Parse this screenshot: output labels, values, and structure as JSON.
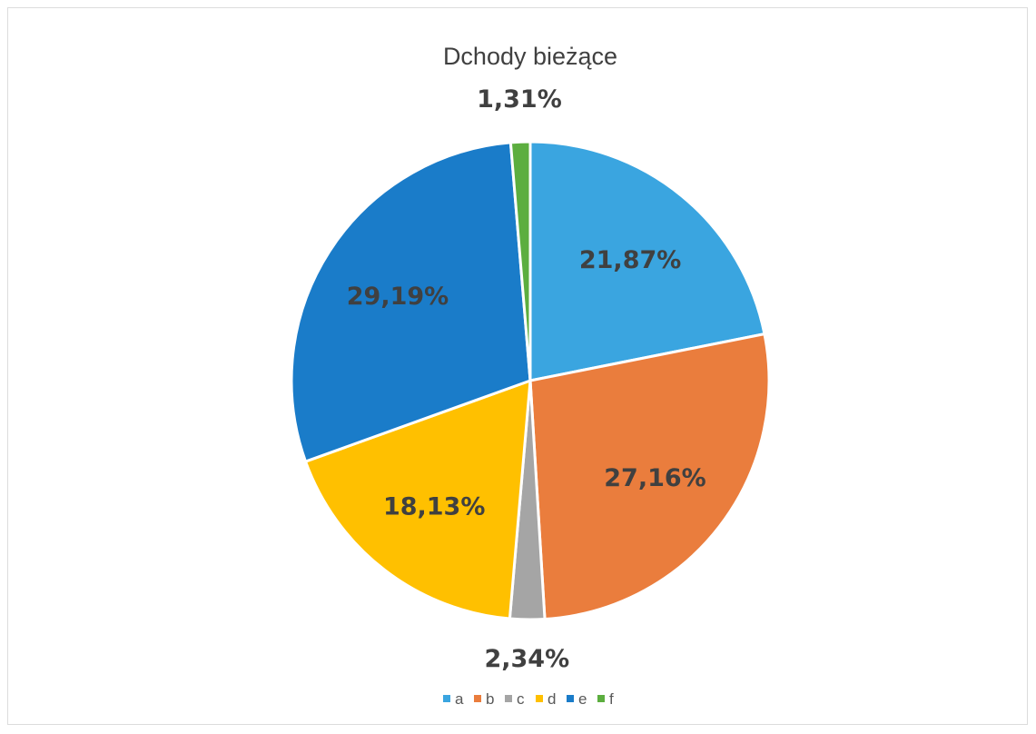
{
  "chart_data": {
    "type": "pie",
    "title": "Dchody bieżące",
    "categories": [
      "a",
      "b",
      "c",
      "d",
      "e",
      "f"
    ],
    "values": [
      21.87,
      27.16,
      2.34,
      18.13,
      29.19,
      1.31
    ],
    "data_labels": [
      "21,87%",
      "27,16%",
      "2,34%",
      "18,13%",
      "29,19%",
      "1,31%"
    ],
    "colors": [
      "#3aa5e0",
      "#ea7d3d",
      "#a5a5a5",
      "#ffc000",
      "#1a7cc9",
      "#5cae3f"
    ],
    "legend_position": "bottom",
    "start_angle": "top, clockwise"
  }
}
